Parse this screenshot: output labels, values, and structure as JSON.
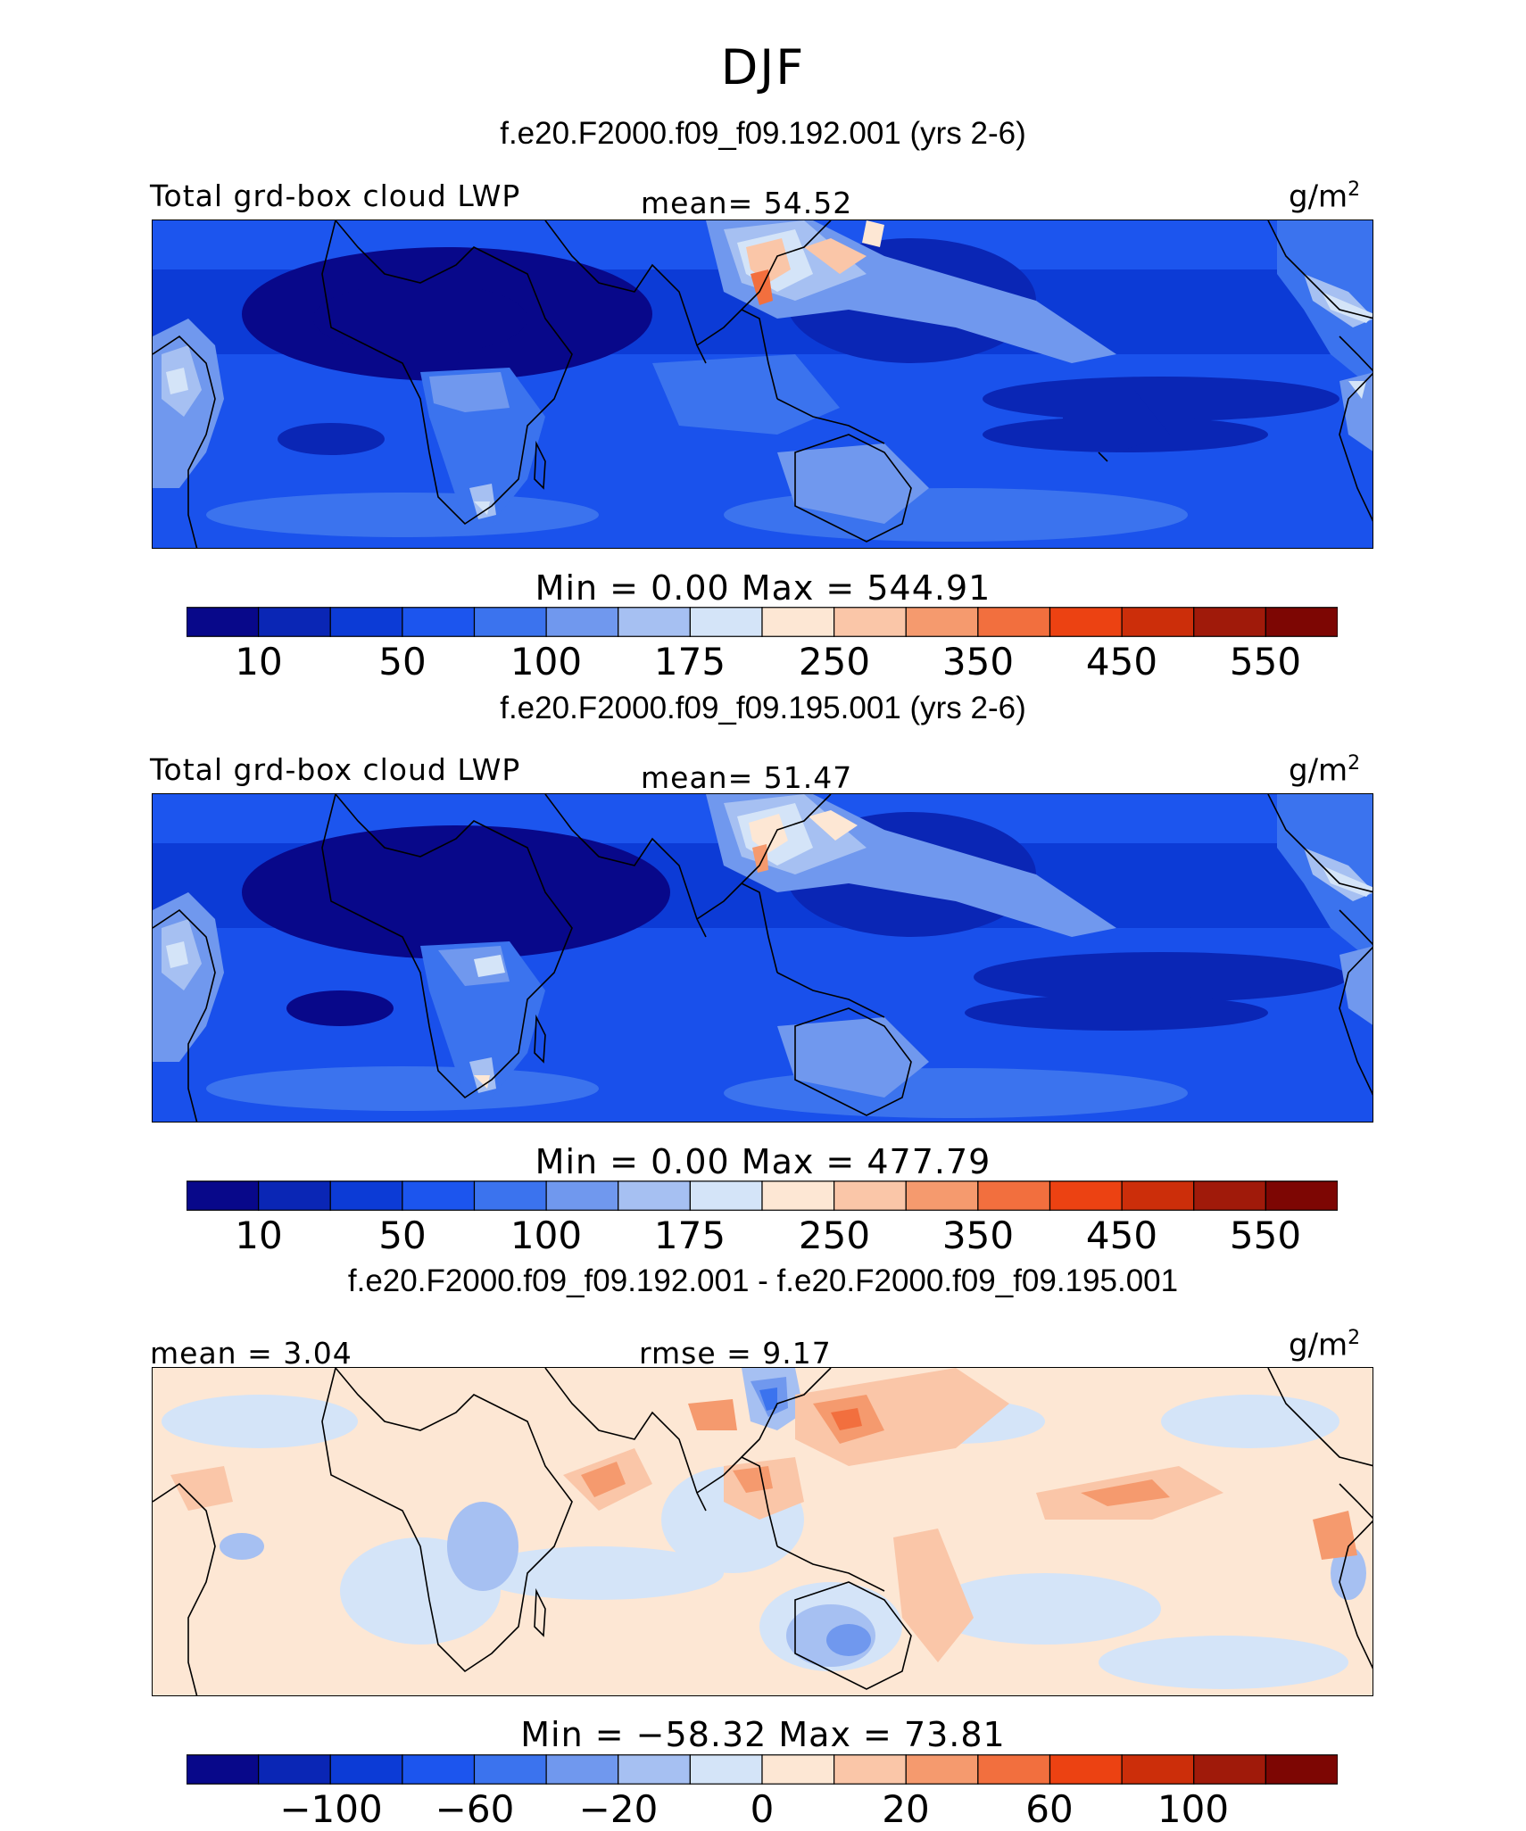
{
  "figure": {
    "title": "DJF"
  },
  "colors": {
    "abs": [
      "#08088a",
      "#0a26b5",
      "#0c3bd6",
      "#1c55ee",
      "#3b73ee",
      "#7098ee",
      "#a6c0f2",
      "#d4e4f8",
      "#fde7d4",
      "#fac6a8",
      "#f59a6e",
      "#f26f3e",
      "#ec4212",
      "#cc2e0a",
      "#a01a0a",
      "#7d0603"
    ],
    "diff": [
      "#08088a",
      "#0a26b5",
      "#0c3bd6",
      "#1c55ee",
      "#3b73ee",
      "#7098ee",
      "#a6c0f2",
      "#d4e4f8",
      "#fde7d4",
      "#fac6a8",
      "#f59a6e",
      "#f26f3e",
      "#ec4212",
      "#cc2e0a",
      "#a01a0a",
      "#7d0603"
    ],
    "coast": "#000000"
  },
  "panels": [
    {
      "case_title": "f.e20.F2000.f09_f09.192.001 (yrs 2-6)",
      "left_label": "Total grd-box cloud LWP",
      "center_label": "mean=  54.52",
      "units": "g/m",
      "units_sup": "2",
      "minmax": "Min =    0.00 Max = 544.91"
    },
    {
      "case_title": "f.e20.F2000.f09_f09.195.001 (yrs 2-6)",
      "left_label": "Total grd-box cloud LWP",
      "center_label": "mean=  51.47",
      "units": "g/m",
      "units_sup": "2",
      "minmax": "Min =    0.00 Max = 477.79"
    },
    {
      "case_title": "f.e20.F2000.f09_f09.192.001 - f.e20.F2000.f09_f09.195.001",
      "left_label": "mean =   3.04",
      "center_label": "rmse =   9.17",
      "units": "g/m",
      "units_sup": "2",
      "minmax": "Min = −58.32 Max =  73.81"
    }
  ],
  "chart_data": [
    {
      "type": "heatmap",
      "title": "f.e20.F2000.f09_f09.192.001 (yrs 2-6)",
      "variable": "Total grd-box cloud LWP",
      "units": "g/m2",
      "mean": 54.52,
      "min": 0.0,
      "max": 544.91,
      "colorbar_ticks": [
        "10",
        "50",
        "100",
        "175",
        "250",
        "350",
        "450",
        "550"
      ]
    },
    {
      "type": "heatmap",
      "title": "f.e20.F2000.f09_f09.195.001 (yrs 2-6)",
      "variable": "Total grd-box cloud LWP",
      "units": "g/m2",
      "mean": 51.47,
      "min": 0.0,
      "max": 477.79,
      "colorbar_ticks": [
        "10",
        "50",
        "100",
        "175",
        "250",
        "350",
        "450",
        "550"
      ]
    },
    {
      "type": "heatmap",
      "title": "f.e20.F2000.f09_f09.192.001 - f.e20.F2000.f09_f09.195.001",
      "units": "g/m2",
      "mean": 3.04,
      "rmse": 9.17,
      "min": -58.32,
      "max": 73.81,
      "colorbar_ticks": [
        "−100",
        "−60",
        "−20",
        "0",
        "20",
        "60",
        "100"
      ]
    }
  ]
}
